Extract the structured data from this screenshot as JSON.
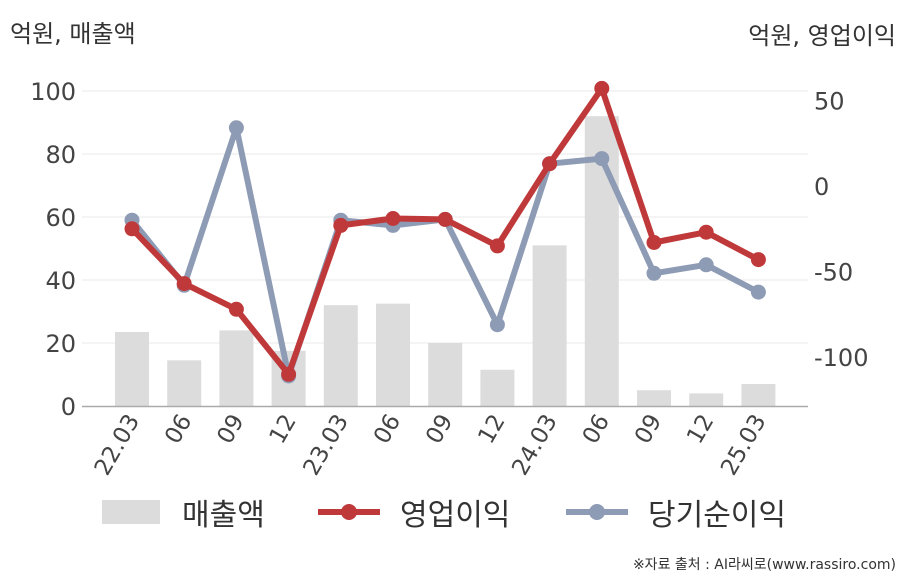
{
  "units": {
    "left": "억원, 매출액",
    "right": "억원, 영업이익"
  },
  "legend": {
    "bar": "매출액",
    "line1": "영업이익",
    "line2": "당기순이익"
  },
  "source": "※자료 출처 : AI라씨로(www.rassiro.com)",
  "colors": {
    "bar": "#dcdcdc",
    "operating_profit": "#c0393a",
    "net_income": "#8e9bb5",
    "grid": "#e8e8e8",
    "axis": "#aaaaaa"
  },
  "chart_data": {
    "type": "bar+line",
    "categories": [
      "22.03",
      "06",
      "09",
      "12",
      "23.03",
      "06",
      "09",
      "12",
      "24.03",
      "06",
      "09",
      "12",
      "25.03"
    ],
    "left_axis": {
      "ticks": [
        0,
        20,
        40,
        60,
        80,
        100
      ],
      "ylim": [
        0,
        100
      ]
    },
    "right_axis": {
      "ticks": [
        50,
        0,
        -50,
        -100
      ],
      "ylim": [
        -129,
        55
      ]
    },
    "series": [
      {
        "name": "매출액",
        "kind": "bar",
        "axis": "left",
        "values": [
          23.5,
          14.5,
          24,
          17.5,
          32,
          32.5,
          20,
          11.5,
          51,
          92,
          5,
          4,
          7
        ]
      },
      {
        "name": "영업이익",
        "kind": "line",
        "axis": "right",
        "values": [
          -25,
          -57,
          -72,
          -110,
          -23,
          -19,
          -19.5,
          -35,
          13,
          57,
          -33,
          -27,
          -43
        ]
      },
      {
        "name": "당기순이익",
        "kind": "line",
        "axis": "right",
        "values": [
          -20,
          -58,
          34,
          -111,
          -20,
          -23,
          -19.5,
          -81,
          13,
          16,
          -51,
          -46,
          -62
        ]
      }
    ]
  }
}
